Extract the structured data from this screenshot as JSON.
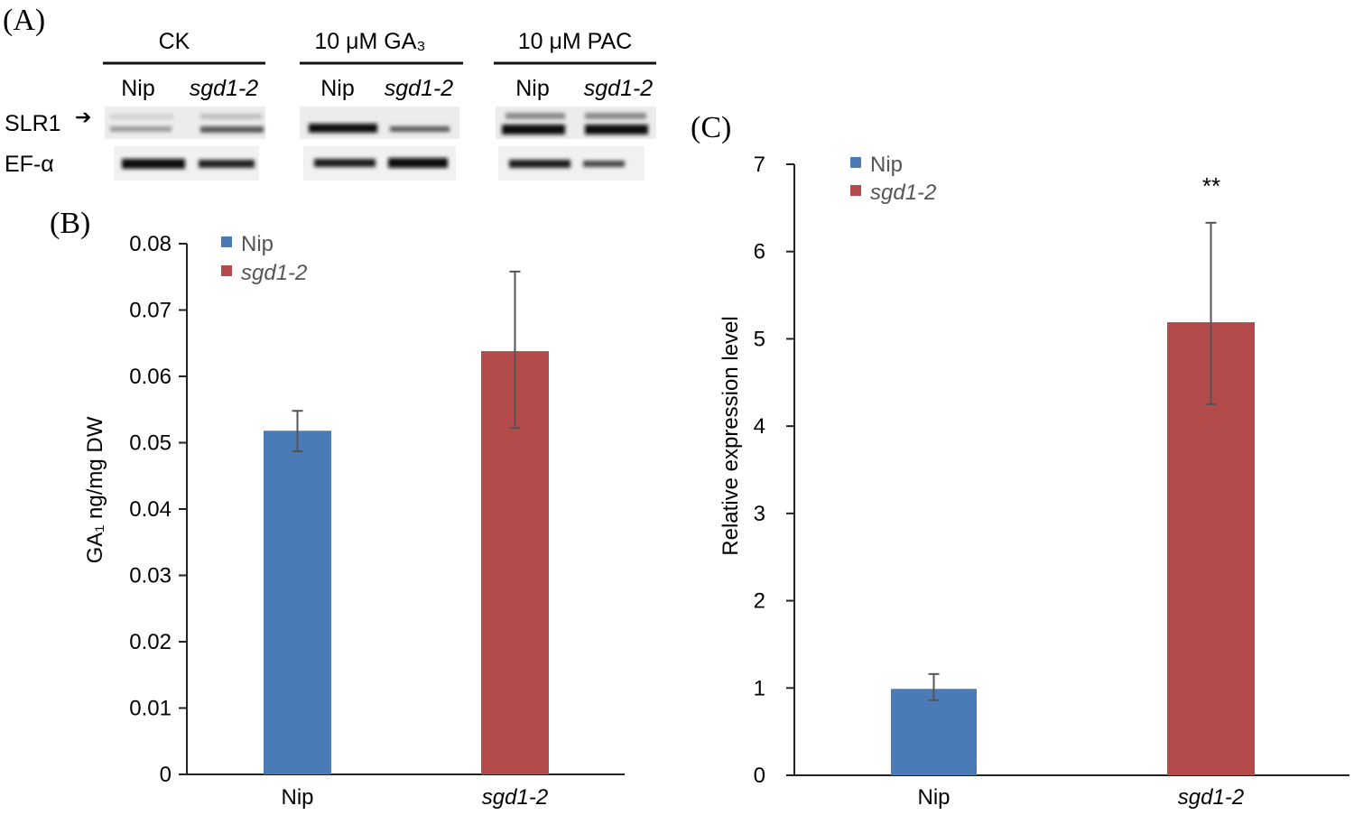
{
  "panel_labels": {
    "a": "(A)",
    "b": "(B)",
    "c": "(C)"
  },
  "blot": {
    "treatments": [
      "CK",
      "10 μM GA₃",
      "10 μM PAC"
    ],
    "lanes": [
      "Nip",
      "sgd1-2"
    ],
    "rows": [
      "SLR1",
      "EF-α"
    ]
  },
  "colors": {
    "nip": "#4a7bb7",
    "sgd": "#b34b4a",
    "error_bar": "#555555"
  },
  "chart_data": [
    {
      "type": "bar",
      "panel": "(B)",
      "categories": [
        "Nip",
        "sgd1-2"
      ],
      "values": [
        0.0518,
        0.0638
      ],
      "error_low": [
        0.0487,
        0.0522
      ],
      "error_high": [
        0.0548,
        0.0758
      ],
      "ylabel": "GA₁ ng/mg DW",
      "xlabel": "",
      "ylim": [
        0,
        0.08
      ],
      "yticks": [
        "0",
        "0.01",
        "0.02",
        "0.03",
        "0.04",
        "0.05",
        "0.06",
        "0.07",
        "0.08"
      ],
      "legend": [
        "Nip",
        "sgd1-2"
      ],
      "legend_placement": "top-left",
      "grid": false,
      "annotations": []
    },
    {
      "type": "bar",
      "panel": "(C)",
      "categories": [
        "Nip",
        "sgd1-2"
      ],
      "values": [
        0.99,
        5.19
      ],
      "error_low": [
        0.86,
        4.25
      ],
      "error_high": [
        1.16,
        6.33
      ],
      "ylabel": "Relative expression level",
      "xlabel": "",
      "ylim": [
        0,
        7
      ],
      "yticks": [
        "0",
        "1",
        "2",
        "3",
        "4",
        "5",
        "6",
        "7"
      ],
      "legend": [
        "Nip",
        "sgd1-2"
      ],
      "legend_placement": "top-left",
      "grid": false,
      "annotations": [
        "**"
      ]
    }
  ]
}
